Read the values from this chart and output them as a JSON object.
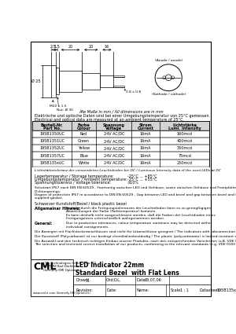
{
  "title": "LED Indicator 22mm\nStandard Bezel  with Flat Lens",
  "company_line1": "CML Technologies GmbH & Co. KG",
  "company_line2": "D-67098 Bad Dürkheim",
  "company_line3": "(formerly EMI Optronics)",
  "company_web": "www.cml-it.com (formerly EBI Optronics)",
  "drawn": "J.J.",
  "checked": "D.L.",
  "date": "03.07.06",
  "scale": "1 : 1",
  "datasheet": "195B135xUC",
  "table_headers_line1": [
    "Bestell-Nr.",
    "Farbe",
    "Spannung",
    "Strom",
    "Lichtstärke"
  ],
  "table_headers_line2": [
    "Part No.",
    "Colour",
    "Voltage",
    "Current",
    "Lumi. Intensity"
  ],
  "table_rows": [
    [
      "195B1350UC",
      "Red",
      "24V AC/DC",
      "16mA",
      "160mcd"
    ],
    [
      "195B1351UC",
      "Green",
      "24V AC/DC",
      "16mA",
      "400mcd"
    ],
    [
      "195B1352UC",
      "Yellow",
      "24V AC/DC",
      "16mA",
      "350mcd"
    ],
    [
      "195B1357UC",
      "Blue",
      "24V AC/DC",
      "16mA",
      "75mcd"
    ],
    [
      "195B135xUC",
      "White",
      "24V AC/DC",
      "16mA",
      "250mcd"
    ]
  ],
  "note_lumi": "Lichtstärketoleranz der verwendeten Leuchtdioden bei DC / Luminous Intensity data of the used LEDs at DC",
  "storage_temp_label": "Lagertemperatur / Storage temperature:",
  "ambient_temp_label": "Umgebungstemperatur / Ambient temperature:",
  "voltage_tol_label": "Spannungstoleranz / Voltage tolerance:",
  "storage_temp": "-25°C ... +85°C",
  "ambient_temp": "-25°C ... +55°C",
  "voltage_tol": "±10%",
  "protection_de1": "Schutzart IP67 nach DIN EN 60529 - Frontseitig zwischen LED und Gehäuse, sowie zwischen Gehäuse und Frontplatte bei Verwendung des mitgelieferten",
  "protection_de2": "Dichtungsrings.",
  "protection_en1": "Degree of protection IP67 in accordance to DIN EN 60529 - Gap between LED and bezel and gap between bezel and frontplate sealed to IP67 when using the",
  "protection_en2": "supplied gasket.",
  "material": "Schwarzer Kunststoff/Bezel / black plastic bezel",
  "allg_hinweise_label": "Allgemeiner Hinweis:",
  "allg_hinweise_lines": [
    "Bedingt durch die Fertigungstoleranzen der Leuchtdioden kann es zu geringfügigen",
    "Abweichungen der Farbe (Farbtemperatur) kommen.",
    "Es kann deshalb nicht ausgeschlossen werden, daß die Farben der Leuchtdioden eines",
    "Fertigungsloses unterschiedlich wahrgenommen werden."
  ],
  "general_label": "General:",
  "general_lines": [
    "Due to production tolerances, colour temperature variations may be detected within",
    "individual consignments."
  ],
  "note1_lines": [
    "Die Anzeigen mit Flachsteckeranschlüssen sind nicht für Lötanschlüsse geeignet / The indicators with tabconnection are not qualified for soldering."
  ],
  "note2_lines": [
    "Der Kunststoff (Polycarbonat) ist nur bedingt chemikalienbeständig / The plastic (polycarbonate) is limited resistant against chemicals."
  ],
  "note3_lines": [
    "Die Auswahl und den technisch richtigen Einbau unserer Produkte, nach den entsprechenden Vorschriften (z.B. VDE 0100 und 0160), obliegen dem Anwender /",
    "The selection and technical correct installation of our products, conforming to the relevant standards (e.g. VDE 0100 and VDE 0160) is incumbent on the user."
  ],
  "elec_note_de": "Elektrische und optische Daten sind bei einer Umgebungstemperatur von 25°C gemessen.",
  "elec_note_en": "Electrical and optical data are measured at an ambient temperature of 25°C.",
  "dim_labels": [
    "2.5",
    "1.5",
    "20",
    "20",
    "16"
  ],
  "dim_top_labels": [
    "20",
    "20",
    "16"
  ],
  "dim_left": "2.5",
  "dim_diam": "Ø 25",
  "m22_label": "M22 x 1.5",
  "nut_label": "Nut: Ø 30",
  "pin_label": "2.8 x 0.8",
  "anode_label": "(Anode / anode)",
  "cathode_label": "(Kathode / cathode)",
  "dim_note": "Alle Maße in mm / All dimensions are in mm"
}
